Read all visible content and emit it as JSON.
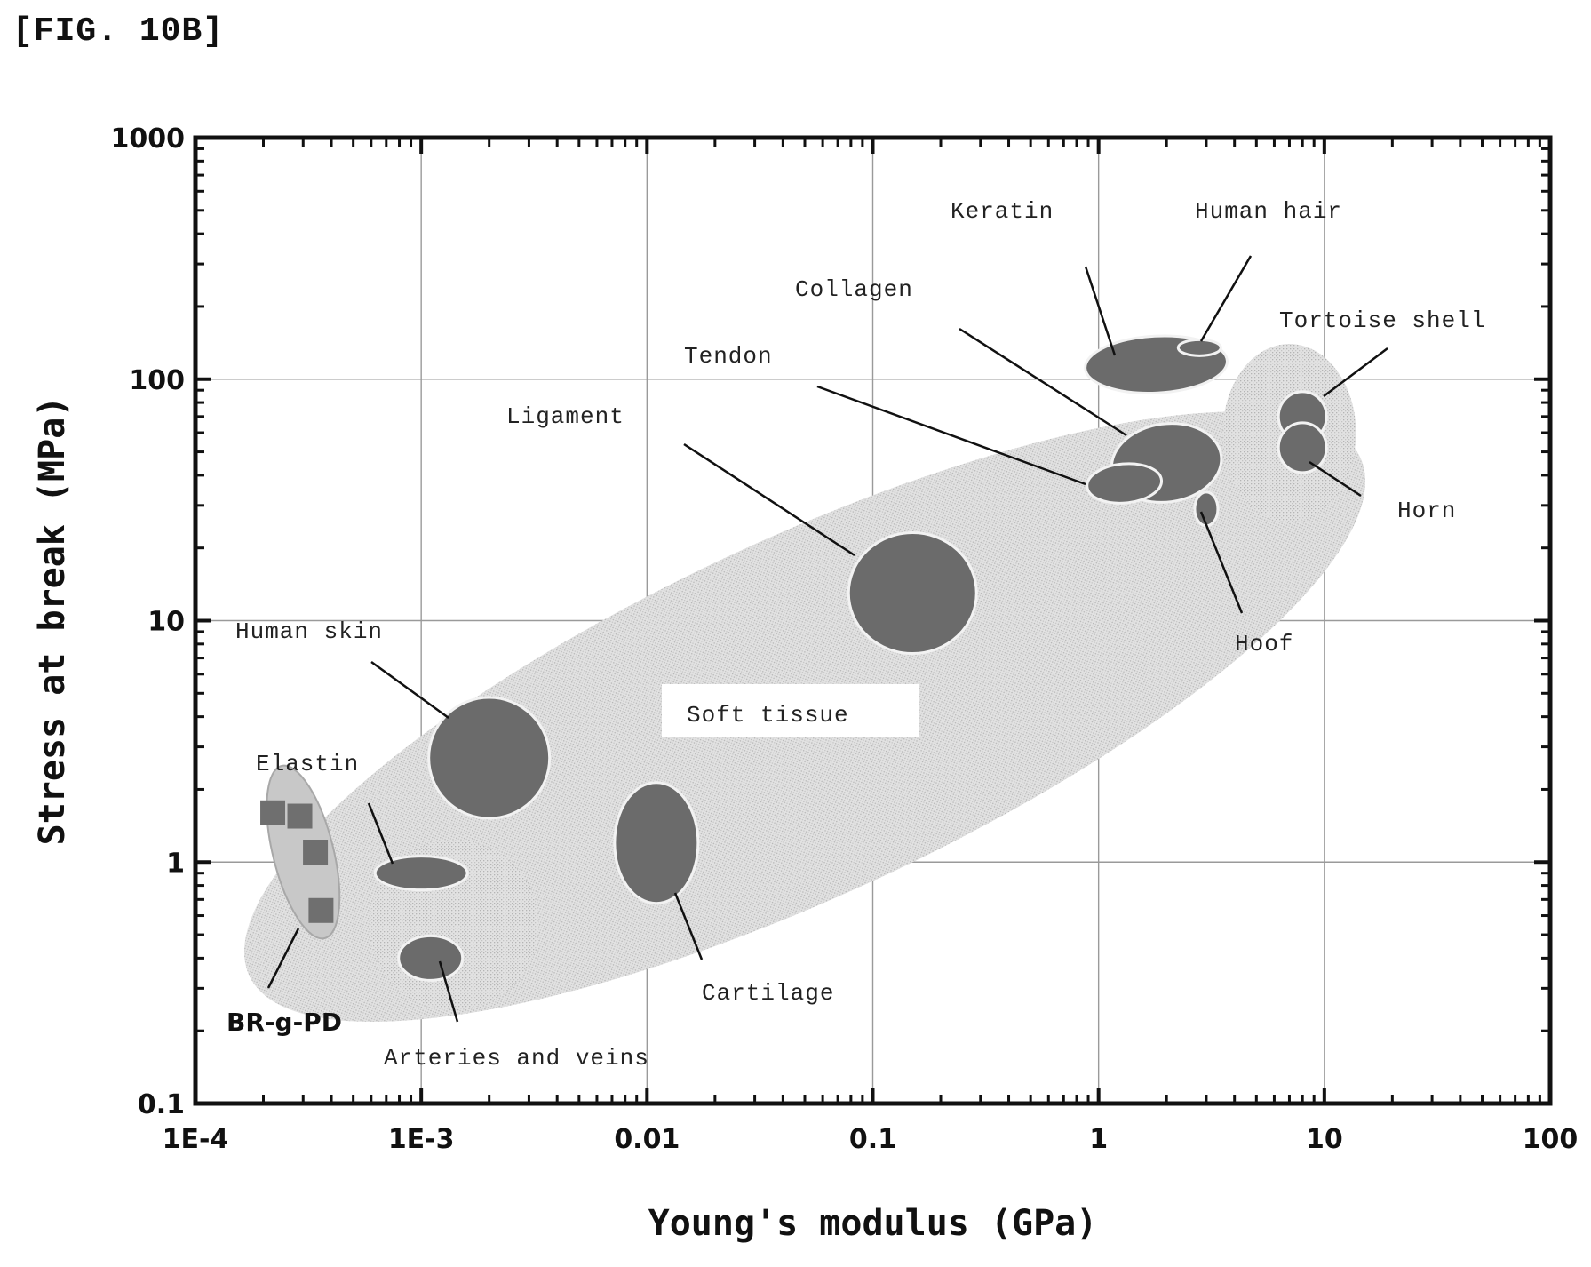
{
  "figure_label": "[FIG. 10B]",
  "chart_data": {
    "type": "scatter",
    "xlabel": "Young's modulus (GPa)",
    "ylabel": "Stress at break (MPa)",
    "xscale": "log",
    "yscale": "log",
    "xlim": [
      0.0001,
      100
    ],
    "ylim": [
      0.1,
      1000
    ],
    "xticks": [
      "1E-4",
      "1E-3",
      "0.01",
      "0.1",
      "1",
      "10",
      "100"
    ],
    "yticks": [
      "0.1",
      "1",
      "10",
      "100",
      "1000"
    ],
    "grid": true,
    "colors": {
      "soft_tissue": "#d9d9d9",
      "material": "#6b6b6b",
      "bright_fill": "#c8c8c8",
      "square_marker": "#6f6f6f"
    },
    "regions": [
      {
        "name": "Soft tissue",
        "young_gpa": 0.05,
        "stress_mpa": 4
      },
      {
        "name": "Human skin",
        "young_gpa": 0.002,
        "stress_mpa": 2.7
      },
      {
        "name": "Elastin",
        "young_gpa": 0.001,
        "stress_mpa": 0.9
      },
      {
        "name": "Arteries and veins",
        "young_gpa": 0.0011,
        "stress_mpa": 0.4
      },
      {
        "name": "Cartilage",
        "young_gpa": 0.011,
        "stress_mpa": 1.2
      },
      {
        "name": "Ligament",
        "young_gpa": 0.15,
        "stress_mpa": 13
      },
      {
        "name": "Tendon",
        "young_gpa": 1.3,
        "stress_mpa": 37
      },
      {
        "name": "Collagen",
        "young_gpa": 2.0,
        "stress_mpa": 45
      },
      {
        "name": "Keratin",
        "young_gpa": 1.8,
        "stress_mpa": 115
      },
      {
        "name": "Human hair",
        "young_gpa": 2.8,
        "stress_mpa": 135
      },
      {
        "name": "Hoof",
        "young_gpa": 3.0,
        "stress_mpa": 29
      },
      {
        "name": "Tortoise shell",
        "young_gpa": 8.0,
        "stress_mpa": 70
      },
      {
        "name": "Horn",
        "young_gpa": 8.0,
        "stress_mpa": 52
      },
      {
        "name": "BR-g-PD",
        "young_gpa": 0.0003,
        "stress_mpa": 1.1
      }
    ],
    "points": [
      {
        "series": "BR-g-PD",
        "x": 0.00022,
        "y": 1.6
      },
      {
        "series": "BR-g-PD",
        "x": 0.00029,
        "y": 1.55
      },
      {
        "series": "BR-g-PD",
        "x": 0.00034,
        "y": 1.1
      },
      {
        "series": "BR-g-PD",
        "x": 0.00036,
        "y": 0.63
      }
    ],
    "annotations": [
      "Keratin",
      "Human hair",
      "Collagen",
      "Tortoise shell",
      "Tendon",
      "Ligament",
      "Horn",
      "Hoof",
      "Human skin",
      "Soft tissue",
      "Elastin",
      "Cartilage",
      "BR-g-PD",
      "Arteries and veins"
    ]
  }
}
